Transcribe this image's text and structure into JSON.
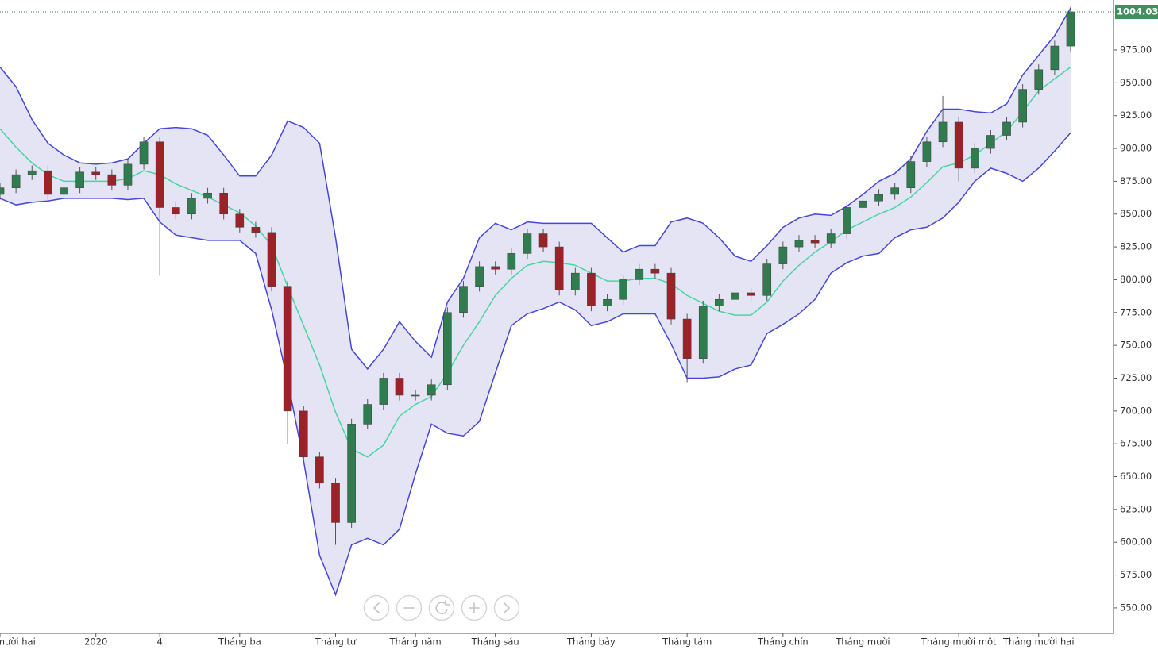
{
  "chart_data": {
    "type": "candlestick",
    "categories": [
      "Tháng mười hai",
      null,
      null,
      null,
      null,
      null,
      "2020",
      null,
      null,
      null,
      "4",
      null,
      null,
      null,
      null,
      "Tháng ba",
      null,
      null,
      null,
      null,
      null,
      "Tháng tư",
      null,
      null,
      null,
      null,
      "Tháng năm",
      null,
      null,
      null,
      null,
      "Tháng sáu",
      null,
      null,
      null,
      null,
      null,
      "Tháng bảy",
      null,
      null,
      null,
      null,
      null,
      "Tháng tám",
      null,
      null,
      null,
      null,
      null,
      "Tháng chín",
      null,
      null,
      null,
      null,
      "Tháng mười",
      null,
      null,
      null,
      null,
      null,
      "Tháng mười một",
      null,
      null,
      null,
      null,
      "Tháng mười hai",
      null,
      null
    ],
    "open": [
      865,
      870,
      880,
      883,
      865,
      870,
      882,
      880,
      872,
      888,
      905,
      855,
      850,
      862,
      866,
      850,
      840,
      836,
      795,
      700,
      665,
      645,
      615,
      690,
      705,
      725,
      712,
      712,
      720,
      775,
      795,
      810,
      808,
      820,
      835,
      825,
      792,
      805,
      780,
      785,
      800,
      808,
      805,
      770,
      740,
      780,
      785,
      790,
      788,
      812,
      825,
      830,
      828,
      835,
      855,
      860,
      865,
      870,
      890,
      905,
      920,
      885,
      900,
      910,
      920,
      945,
      960,
      978
    ],
    "high": [
      874,
      884,
      887,
      887,
      874,
      886,
      886,
      884,
      892,
      909,
      909,
      859,
      866,
      870,
      870,
      854,
      844,
      840,
      799,
      704,
      669,
      649,
      694,
      709,
      729,
      729,
      716,
      724,
      779,
      799,
      814,
      814,
      824,
      839,
      839,
      829,
      809,
      809,
      789,
      804,
      812,
      812,
      809,
      774,
      784,
      789,
      794,
      794,
      816,
      829,
      834,
      834,
      839,
      859,
      864,
      869,
      874,
      894,
      909,
      940,
      924,
      904,
      914,
      924,
      949,
      964,
      982,
      1008
    ],
    "low": [
      861,
      866,
      876,
      861,
      861,
      866,
      876,
      868,
      868,
      884,
      803,
      846,
      846,
      858,
      846,
      836,
      832,
      791,
      675,
      661,
      641,
      598,
      611,
      686,
      701,
      708,
      708,
      708,
      716,
      771,
      791,
      804,
      804,
      816,
      821,
      788,
      788,
      776,
      776,
      781,
      796,
      801,
      766,
      722,
      736,
      776,
      781,
      784,
      784,
      808,
      821,
      824,
      824,
      831,
      851,
      856,
      861,
      866,
      886,
      901,
      875,
      881,
      896,
      906,
      916,
      941,
      956,
      974
    ],
    "close": [
      870,
      880,
      883,
      865,
      870,
      882,
      880,
      872,
      888,
      905,
      855,
      850,
      862,
      866,
      850,
      840,
      836,
      795,
      700,
      665,
      645,
      615,
      690,
      705,
      725,
      712,
      712,
      720,
      775,
      795,
      810,
      808,
      820,
      835,
      825,
      792,
      805,
      780,
      785,
      800,
      808,
      805,
      770,
      740,
      780,
      785,
      790,
      788,
      812,
      825,
      830,
      828,
      835,
      855,
      860,
      865,
      870,
      890,
      905,
      920,
      885,
      900,
      910,
      920,
      945,
      960,
      978,
      1004.03
    ],
    "up_color": "#2f7d4f",
    "down_color": "#9b2226",
    "band_fill": "#e4e4f4",
    "series": [
      {
        "color": "#4646d8",
        "values": [
          962,
          947,
          922,
          904,
          895,
          889,
          888,
          889,
          892,
          904,
          915,
          916,
          915,
          910,
          895,
          879,
          879,
          895,
          921,
          916,
          904,
          832,
          747,
          732,
          747,
          768,
          753,
          741,
          783,
          801,
          832,
          843,
          838,
          844,
          843,
          843,
          843,
          843,
          832,
          821,
          826,
          826,
          844,
          847,
          843,
          832,
          818,
          814,
          826,
          840,
          847,
          850,
          849,
          856,
          865,
          875,
          881,
          892,
          913,
          930,
          930,
          928,
          927,
          934,
          956,
          971,
          986,
          1007
        ]
      },
      {
        "color": "#48d6a0",
        "values": [
          915,
          901,
          889,
          880,
          875,
          875,
          875,
          875,
          877,
          883,
          880,
          873,
          868,
          863,
          857,
          851,
          841,
          826,
          795,
          765,
          735,
          699,
          671,
          665,
          674,
          696,
          705,
          711,
          729,
          750,
          768,
          788,
          801,
          811,
          814,
          813,
          811,
          805,
          799,
          799,
          801,
          801,
          797,
          788,
          782,
          776,
          773,
          773,
          783,
          799,
          811,
          821,
          829,
          838,
          844,
          850,
          855,
          863,
          874,
          886,
          889,
          895,
          904,
          913,
          928,
          944,
          953,
          962
        ]
      },
      {
        "color": "#4646d8",
        "values": [
          862,
          857,
          859,
          860,
          862,
          862,
          862,
          862,
          861,
          862,
          844,
          834,
          832,
          830,
          830,
          830,
          820,
          777,
          723,
          662,
          590,
          560,
          598,
          603,
          598,
          610,
          652,
          690,
          683,
          681,
          692,
          729,
          765,
          774,
          778,
          783,
          777,
          765,
          768,
          774,
          774,
          774,
          751,
          725,
          725,
          726,
          732,
          735,
          759,
          766,
          774,
          785,
          805,
          813,
          818,
          820,
          832,
          838,
          840,
          847,
          859,
          875,
          885,
          881,
          875,
          885,
          898,
          912
        ]
      }
    ],
    "ylim": [
      530.6,
      1013.1
    ],
    "yticks": [
      {
        "value": 550,
        "label": "550.00"
      },
      {
        "value": 575,
        "label": "575.00"
      },
      {
        "value": 600,
        "label": "600.00"
      },
      {
        "value": 625,
        "label": "625.00"
      },
      {
        "value": 650,
        "label": "650.00"
      },
      {
        "value": 675,
        "label": "675.00"
      },
      {
        "value": 700,
        "label": "700.00"
      },
      {
        "value": 725,
        "label": "725.00"
      },
      {
        "value": 750,
        "label": "750.00"
      },
      {
        "value": 775,
        "label": "775.00"
      },
      {
        "value": 800,
        "label": "800.00"
      },
      {
        "value": 825,
        "label": "825.00"
      },
      {
        "value": 850,
        "label": "850.00"
      },
      {
        "value": 875,
        "label": "875.00"
      },
      {
        "value": 900,
        "label": "900.00"
      },
      {
        "value": 925,
        "label": "925.00"
      },
      {
        "value": 950,
        "label": "950.00"
      },
      {
        "value": 975,
        "label": "975.00"
      }
    ]
  }
}
